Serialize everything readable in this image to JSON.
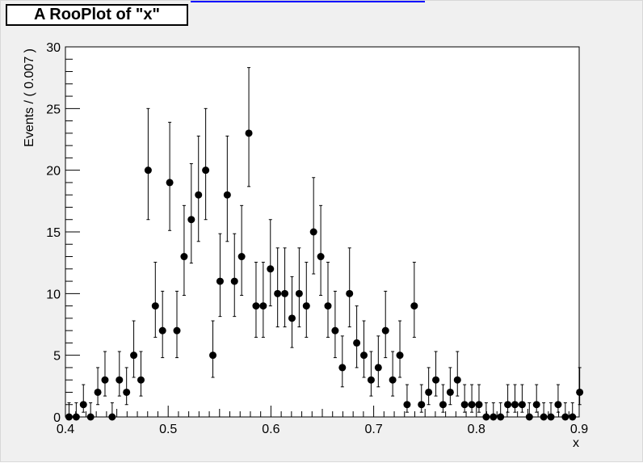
{
  "window": {
    "title": "A RooPlot of \"x\""
  },
  "colors": {
    "canvas_bg": "#f0f0f0",
    "frame_bg": "#ffffff",
    "marker": "#000000",
    "title_strip": "#0000ff"
  },
  "chart_data": {
    "type": "scatter",
    "title": "A RooPlot of \"x\"",
    "xlabel": "x",
    "ylabel": "Events / ( 0.007 )",
    "xlim": [
      0.4,
      0.9
    ],
    "ylim": [
      0,
      30
    ],
    "xticks": [
      "0.4",
      "0.5",
      "0.6",
      "0.7",
      "0.8",
      "0.9"
    ],
    "yticks": [
      "0",
      "5",
      "10",
      "15",
      "20",
      "25",
      "30"
    ],
    "grid": false,
    "error_bars": "poisson",
    "x": [
      0.4035,
      0.4105,
      0.4175,
      0.4245,
      0.4315,
      0.4385,
      0.4455,
      0.4525,
      0.4595,
      0.4665,
      0.4735,
      0.4805,
      0.4875,
      0.4945,
      0.5015,
      0.5085,
      0.5155,
      0.5225,
      0.5295,
      0.5365,
      0.5435,
      0.5505,
      0.5575,
      0.5645,
      0.5715,
      0.5785,
      0.5855,
      0.5925,
      0.5995,
      0.6065,
      0.6135,
      0.6205,
      0.6275,
      0.6345,
      0.6415,
      0.6485,
      0.6555,
      0.6625,
      0.6695,
      0.6765,
      0.6835,
      0.6905,
      0.6975,
      0.7045,
      0.7115,
      0.7185,
      0.7255,
      0.7325,
      0.7395,
      0.7465,
      0.7535,
      0.7605,
      0.7675,
      0.7745,
      0.7815,
      0.7885,
      0.7955,
      0.8025,
      0.8095,
      0.8165,
      0.8235,
      0.8305,
      0.8375,
      0.8445,
      0.8515,
      0.8585,
      0.8655,
      0.8725,
      0.8795,
      0.8865,
      0.8935,
      0.9005
    ],
    "values": [
      0,
      0,
      1,
      0,
      2,
      3,
      0,
      3,
      2,
      5,
      3,
      20,
      9,
      7,
      19,
      7,
      13,
      16,
      18,
      20,
      5,
      11,
      18,
      11,
      13,
      23,
      9,
      9,
      12,
      10,
      10,
      8,
      10,
      9,
      15,
      13,
      9,
      7,
      4,
      10,
      6,
      5,
      3,
      4,
      7,
      3,
      5,
      1,
      9,
      1,
      2,
      3,
      1,
      2,
      3,
      1,
      1,
      1,
      0,
      0,
      0,
      1,
      1,
      1,
      0,
      1,
      0,
      0,
      1,
      0,
      0,
      2
    ]
  }
}
